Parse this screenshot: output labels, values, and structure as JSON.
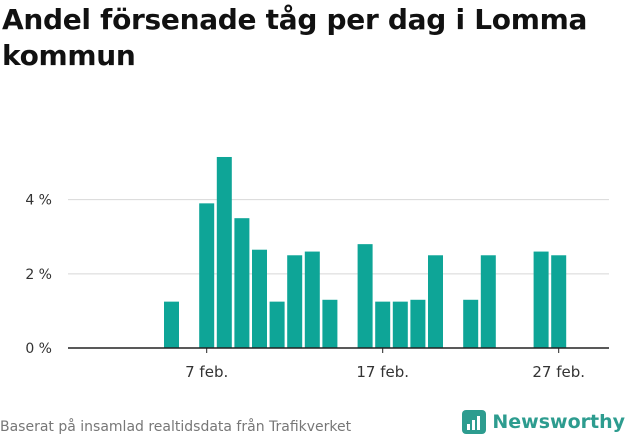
{
  "chart_data": {
    "type": "bar",
    "title": "Andel försenade tåg per dag i Lomma kommun",
    "xlabel": "",
    "ylabel": "",
    "x_start_day": 1,
    "categories": [
      "1 feb.",
      "2 feb.",
      "3 feb.",
      "4 feb.",
      "5 feb.",
      "6 feb.",
      "7 feb.",
      "8 feb.",
      "9 feb.",
      "10 feb.",
      "11 feb.",
      "12 feb.",
      "13 feb.",
      "14 feb.",
      "15 feb.",
      "16 feb.",
      "17 feb.",
      "18 feb.",
      "19 feb.",
      "20 feb.",
      "21 feb.",
      "22 feb.",
      "23 feb.",
      "24 feb.",
      "25 feb.",
      "26 feb.",
      "27 feb.",
      "28 feb."
    ],
    "values": [
      null,
      null,
      null,
      null,
      1.25,
      null,
      3.9,
      5.15,
      3.5,
      2.65,
      1.25,
      2.5,
      2.6,
      1.3,
      null,
      2.8,
      1.25,
      1.25,
      1.3,
      2.5,
      null,
      1.3,
      2.5,
      null,
      null,
      2.6,
      2.5,
      null
    ],
    "ylim": [
      0,
      5.5
    ],
    "yticks": [
      {
        "value": 0,
        "label": "0 %"
      },
      {
        "value": 2,
        "label": "2 %"
      },
      {
        "value": 4,
        "label": "4 %"
      }
    ],
    "xticks": [
      {
        "index": 6,
        "label": "7 feb."
      },
      {
        "index": 16,
        "label": "17 feb."
      },
      {
        "index": 26,
        "label": "27 feb."
      }
    ],
    "grid": true,
    "bar_color": "#0ea597"
  },
  "footer": {
    "source": "Baserat på insamlad realtidsdata från Trafikverket",
    "brand": "Newsworthy"
  }
}
